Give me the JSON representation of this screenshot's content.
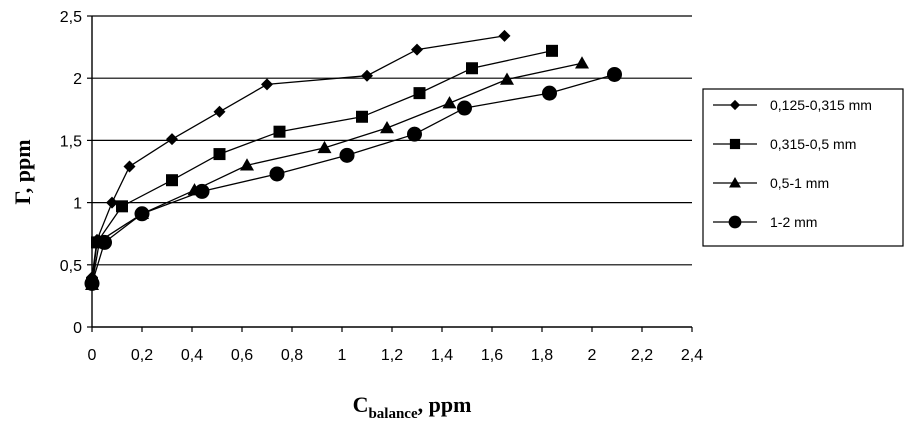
{
  "chart_data": {
    "type": "line",
    "xlabel_main": "C",
    "xlabel_sub": "balance",
    "xlabel_unit": ", ppm",
    "ylabel": "Γ, ppm",
    "xlim": [
      0,
      2.4
    ],
    "ylim": [
      0,
      2.5
    ],
    "x_ticks": [
      "0",
      "0,2",
      "0,4",
      "0,6",
      "0,8",
      "1",
      "1,2",
      "1,4",
      "1,6",
      "1,8",
      "2",
      "2,2",
      "2,4"
    ],
    "y_ticks": [
      "0",
      "0,5",
      "1",
      "1,5",
      "2",
      "2,5"
    ],
    "grid": "horizontal",
    "legend_position": "right",
    "series": [
      {
        "name": "0,125-0,315 mm",
        "marker": "diamond",
        "points": [
          [
            0,
            0.4
          ],
          [
            0.02,
            0.7
          ],
          [
            0.08,
            1.0
          ],
          [
            0.15,
            1.29
          ],
          [
            0.32,
            1.51
          ],
          [
            0.51,
            1.73
          ],
          [
            0.7,
            1.95
          ],
          [
            1.1,
            2.02
          ],
          [
            1.3,
            2.23
          ],
          [
            1.65,
            2.34
          ]
        ]
      },
      {
        "name": "0,315-0,5 mm",
        "marker": "square",
        "points": [
          [
            0,
            0.35
          ],
          [
            0.02,
            0.68
          ],
          [
            0.12,
            0.97
          ],
          [
            0.32,
            1.18
          ],
          [
            0.51,
            1.39
          ],
          [
            0.75,
            1.57
          ],
          [
            1.08,
            1.69
          ],
          [
            1.31,
            1.88
          ],
          [
            1.52,
            2.08
          ],
          [
            1.84,
            2.22
          ]
        ]
      },
      {
        "name": "0,5-1 mm",
        "marker": "triangle",
        "points": [
          [
            0,
            0.34
          ],
          [
            0.03,
            0.69
          ],
          [
            0.2,
            0.91
          ],
          [
            0.41,
            1.1
          ],
          [
            0.62,
            1.3
          ],
          [
            0.93,
            1.44
          ],
          [
            1.18,
            1.6
          ],
          [
            1.43,
            1.8
          ],
          [
            1.66,
            1.99
          ],
          [
            1.96,
            2.12
          ]
        ]
      },
      {
        "name": "1-2 mm",
        "marker": "circle",
        "points": [
          [
            0,
            0.35
          ],
          [
            0.05,
            0.68
          ],
          [
            0.2,
            0.91
          ],
          [
            0.44,
            1.09
          ],
          [
            0.74,
            1.23
          ],
          [
            1.02,
            1.38
          ],
          [
            1.29,
            1.55
          ],
          [
            1.49,
            1.76
          ],
          [
            1.83,
            1.88
          ],
          [
            2.09,
            2.03
          ]
        ]
      }
    ]
  }
}
